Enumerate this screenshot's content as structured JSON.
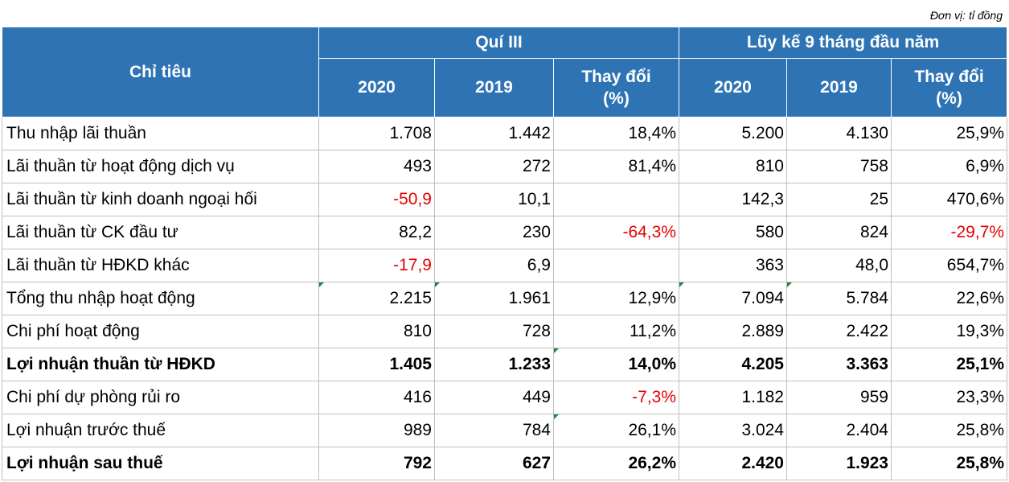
{
  "unit_note": "Đơn vị: tỉ đồng",
  "header": {
    "indicator": "Chỉ tiêu",
    "group_q3": "Quí III",
    "group_9m": "Lũy kế 9 tháng đầu năm",
    "q3_2020": "2020",
    "q3_2019": "2019",
    "q3_change_line1": "Thay đổi",
    "q3_change_line2": "(%)",
    "ytd_2020": "2020",
    "ytd_2019": "2019",
    "ytd_change_line1": "Thay đổi",
    "ytd_change_line2": "(%)"
  },
  "rows": [
    {
      "label": "Thu nhập lãi thuần",
      "q3_2020": "1.708",
      "q3_2019": "1.442",
      "q3_change": "18,4%",
      "ytd_2020": "5.200",
      "ytd_2019": "4.130",
      "ytd_change": "25,9%"
    },
    {
      "label": "Lãi thuần từ hoạt động dịch vụ",
      "q3_2020": "493",
      "q3_2019": "272",
      "q3_change": "81,4%",
      "ytd_2020": "810",
      "ytd_2019": "758",
      "ytd_change": "6,9%"
    },
    {
      "label": "Lãi thuần từ kinh doanh ngoại hối",
      "q3_2020": "-50,9",
      "q3_2019": "10,1",
      "q3_change": "",
      "ytd_2020": "142,3",
      "ytd_2019": "25",
      "ytd_change": "470,6%"
    },
    {
      "label": "Lãi thuần từ CK đầu tư",
      "q3_2020": "82,2",
      "q3_2019": "230",
      "q3_change": "-64,3%",
      "ytd_2020": "580",
      "ytd_2019": "824",
      "ytd_change": "-29,7%"
    },
    {
      "label": "Lãi thuần từ HĐKD khác",
      "q3_2020": "-17,9",
      "q3_2019": "6,9",
      "q3_change": "",
      "ytd_2020": "363",
      "ytd_2019": "48,0",
      "ytd_change": "654,7%"
    },
    {
      "label": "Tổng thu nhập hoạt động",
      "q3_2020": "2.215",
      "q3_2019": "1.961",
      "q3_change": "12,9%",
      "ytd_2020": "7.094",
      "ytd_2019": "5.784",
      "ytd_change": "22,6%"
    },
    {
      "label": "Chi phí hoạt động",
      "q3_2020": "810",
      "q3_2019": "728",
      "q3_change": "11,2%",
      "ytd_2020": "2.889",
      "ytd_2019": "2.422",
      "ytd_change": "19,3%"
    },
    {
      "label": "Lợi nhuận thuần từ HĐKD",
      "q3_2020": "1.405",
      "q3_2019": "1.233",
      "q3_change": "14,0%",
      "ytd_2020": "4.205",
      "ytd_2019": "3.363",
      "ytd_change": "25,1%"
    },
    {
      "label": "Chi phí dự phòng rủi ro",
      "q3_2020": "416",
      "q3_2019": "449",
      "q3_change": "-7,3%",
      "ytd_2020": "1.182",
      "ytd_2019": "959",
      "ytd_change": "23,3%"
    },
    {
      "label": "Lợi nhuận trước thuế",
      "q3_2020": "989",
      "q3_2019": "784",
      "q3_change": "26,1%",
      "ytd_2020": "3.024",
      "ytd_2019": "2.404",
      "ytd_change": "25,8%"
    },
    {
      "label": "Lợi nhuận sau thuế",
      "q3_2020": "792",
      "q3_2019": "627",
      "q3_change": "26,2%",
      "ytd_2020": "2.420",
      "ytd_2019": "1.923",
      "ytd_change": "25,8%"
    }
  ],
  "colors": {
    "header_bg": "#2e74b5",
    "negative": "#e60000"
  }
}
